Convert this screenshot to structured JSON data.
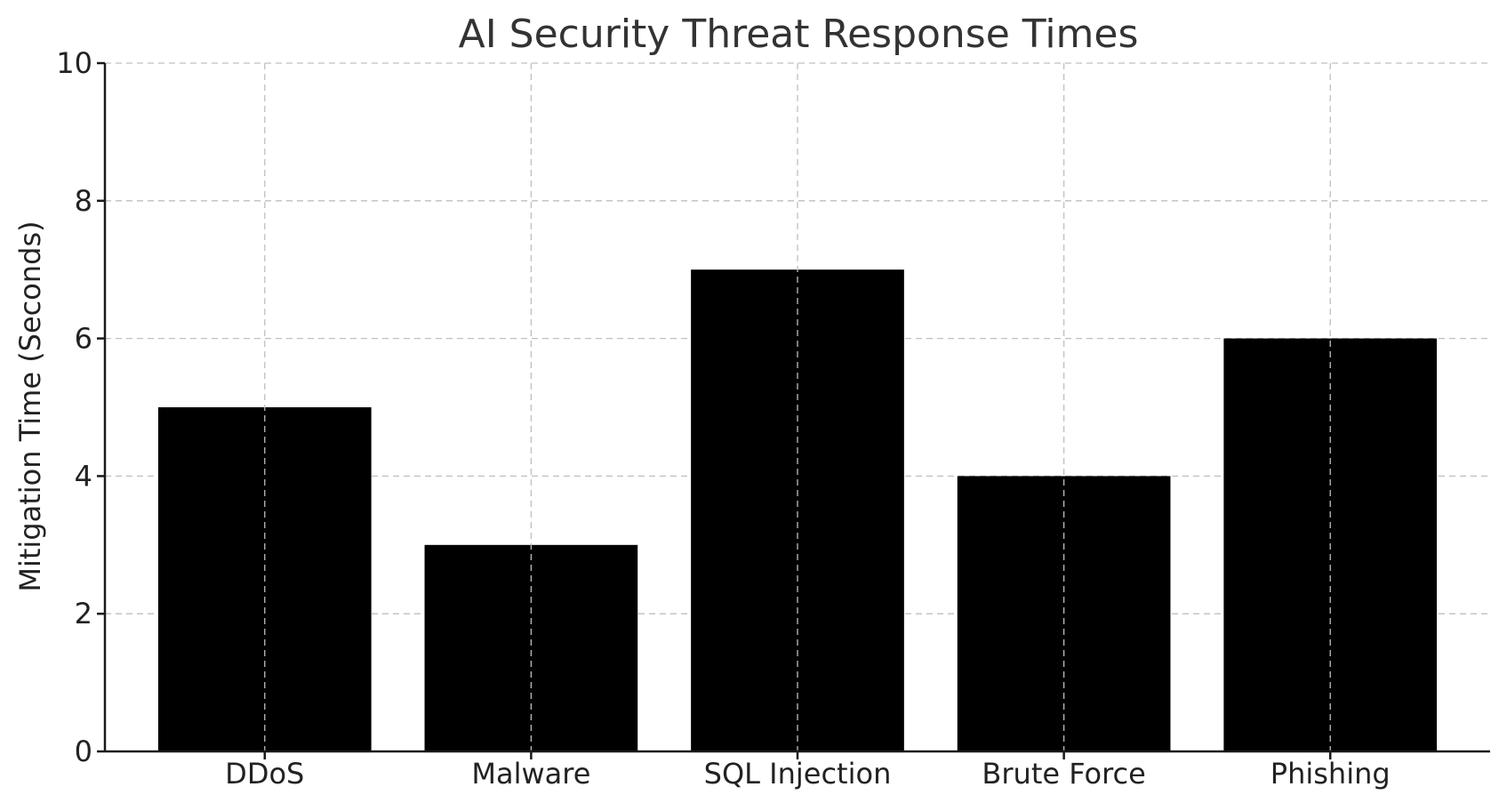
{
  "chart_data": {
    "type": "bar",
    "title": "AI Security Threat Response Times",
    "xlabel": "",
    "ylabel": "Mitigation Time (Seconds)",
    "categories": [
      "DDoS",
      "Malware",
      "SQL Injection",
      "Brute Force",
      "Phishing"
    ],
    "values": [
      5,
      3,
      7,
      4,
      6
    ],
    "ylim": [
      0,
      10
    ],
    "yticks": [
      0,
      2,
      4,
      6,
      8,
      10
    ],
    "grid": true,
    "bar_color": "#000000",
    "grid_color": "#bfbfbf"
  }
}
